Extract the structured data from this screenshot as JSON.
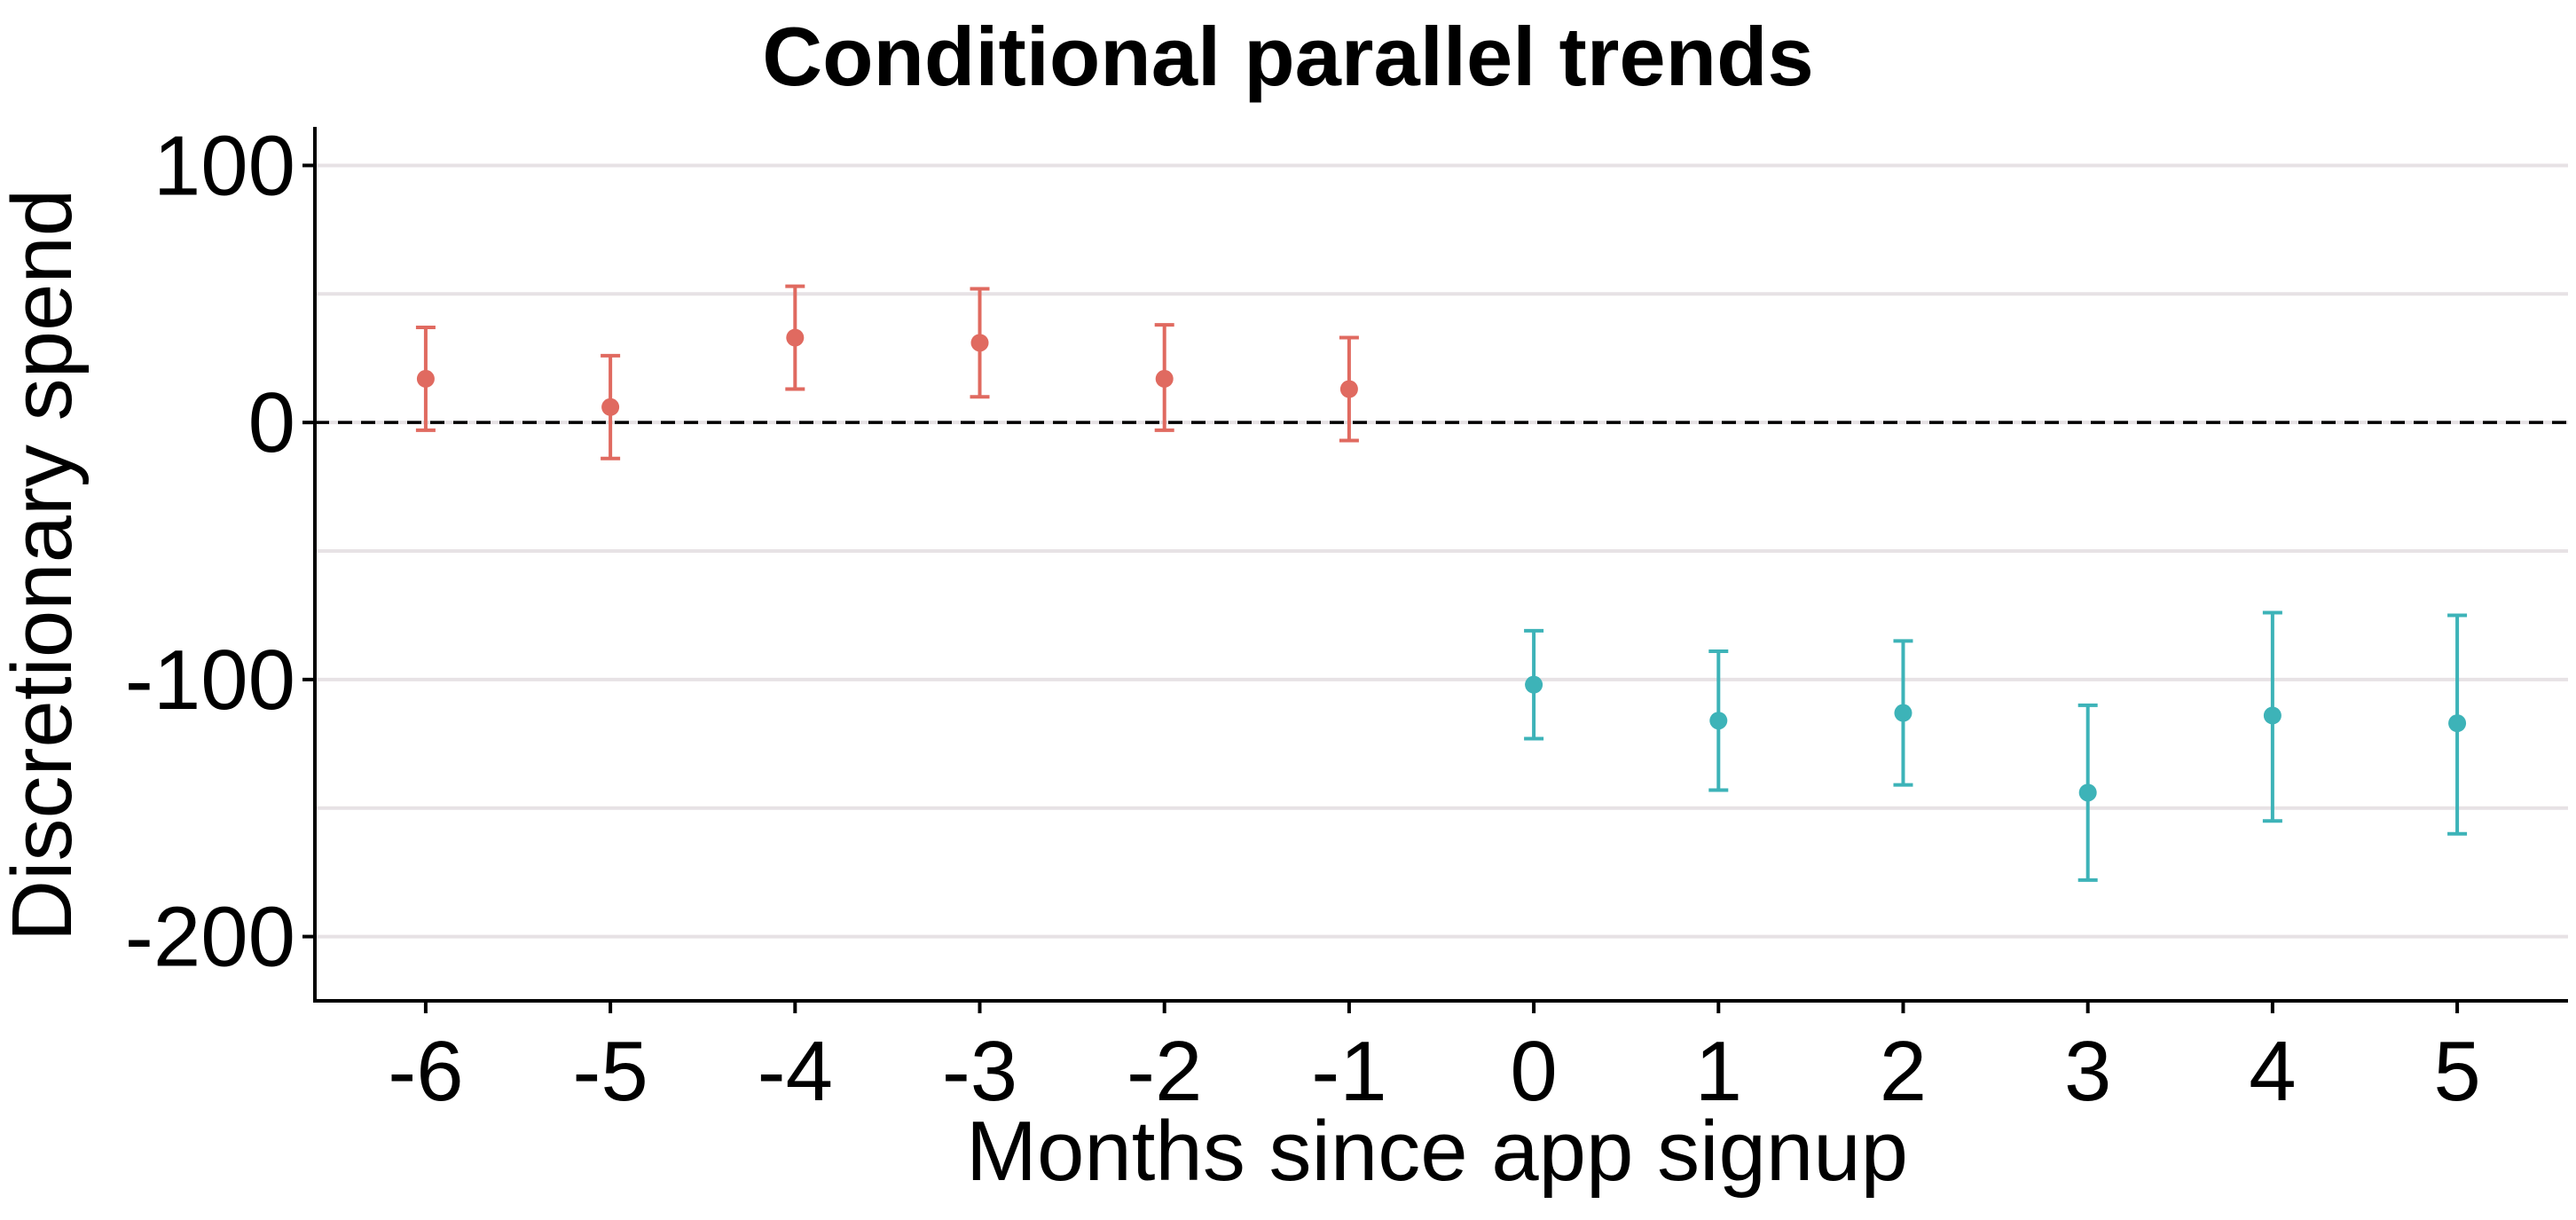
{
  "chart_data": {
    "type": "scatter",
    "title": "Conditional parallel trends",
    "xlabel": "Months since app signup",
    "ylabel": "Discretionary spend",
    "x_ticks": [
      "-6",
      "-5",
      "-4",
      "-3",
      "-2",
      "-1",
      "0",
      "1",
      "2",
      "3",
      "4",
      "5"
    ],
    "y_ticks": [
      "100",
      "0",
      "-100",
      "-200"
    ],
    "xlim": [
      -6.6,
      5.6
    ],
    "ylim": [
      -225,
      115
    ],
    "grid": "horizontal",
    "reference_line": {
      "y": 0,
      "style": "dashed"
    },
    "legend": "none",
    "series": [
      {
        "color": "#E06A60",
        "points": [
          {
            "x": -6,
            "y": 17,
            "lower": -3,
            "upper": 37
          },
          {
            "x": -5,
            "y": 6,
            "lower": -14,
            "upper": 26
          },
          {
            "x": -4,
            "y": 33,
            "lower": 13,
            "upper": 53
          },
          {
            "x": -3,
            "y": 31,
            "lower": 10,
            "upper": 52
          },
          {
            "x": -2,
            "y": 17,
            "lower": -3,
            "upper": 38
          },
          {
            "x": -1,
            "y": 13,
            "lower": -7,
            "upper": 33
          }
        ]
      },
      {
        "color": "#3DB3B8",
        "points": [
          {
            "x": 0,
            "y": -102,
            "lower": -123,
            "upper": -81
          },
          {
            "x": 1,
            "y": -116,
            "lower": -143,
            "upper": -89
          },
          {
            "x": 2,
            "y": -113,
            "lower": -141,
            "upper": -85
          },
          {
            "x": 3,
            "y": -144,
            "lower": -178,
            "upper": -110
          },
          {
            "x": 4,
            "y": -114,
            "lower": -155,
            "upper": -74
          },
          {
            "x": 5,
            "y": -117,
            "lower": -160,
            "upper": -75
          }
        ]
      }
    ]
  }
}
